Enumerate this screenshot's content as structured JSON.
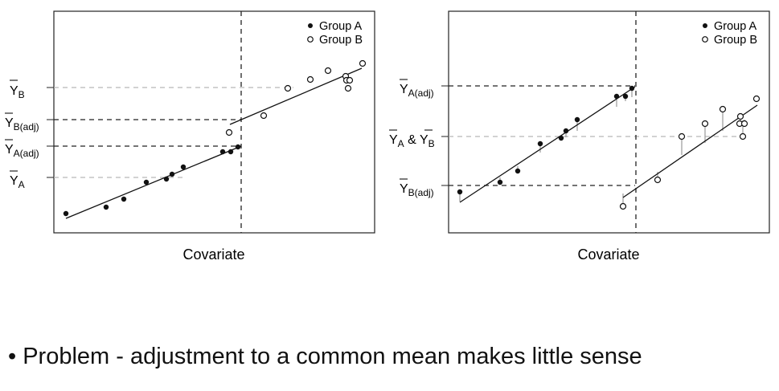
{
  "legend": {
    "group_a": "Group A",
    "group_b": "Group B"
  },
  "left_panel": {
    "xlabel": "Covariate",
    "y_labels": {
      "yb": {
        "base": "Y",
        "sub": "B"
      },
      "yb_adj": {
        "base": "Y",
        "sub": "B(adj)"
      },
      "ya_adj": {
        "base": "Y",
        "sub": "A(adj)"
      },
      "ya": {
        "base": "Y",
        "sub": "A"
      }
    }
  },
  "right_panel": {
    "xlabel": "Covariate",
    "y_labels": {
      "ya_adj": {
        "base": "Y",
        "sub": "A(adj)"
      },
      "ya_yb": {
        "base1": "Y",
        "sub1": "A",
        "amp": " & ",
        "base2": "Y",
        "sub2": "B"
      },
      "yb_adj": {
        "base": "Y",
        "sub": "B(adj)"
      }
    }
  },
  "bullet_text": "• Problem - adjustment to a common mean makes little sense",
  "colors": {
    "filled": "#111111",
    "dashed_dark": "#222222",
    "dashed_light": "#b8b8b8",
    "residual": "#999999"
  }
}
